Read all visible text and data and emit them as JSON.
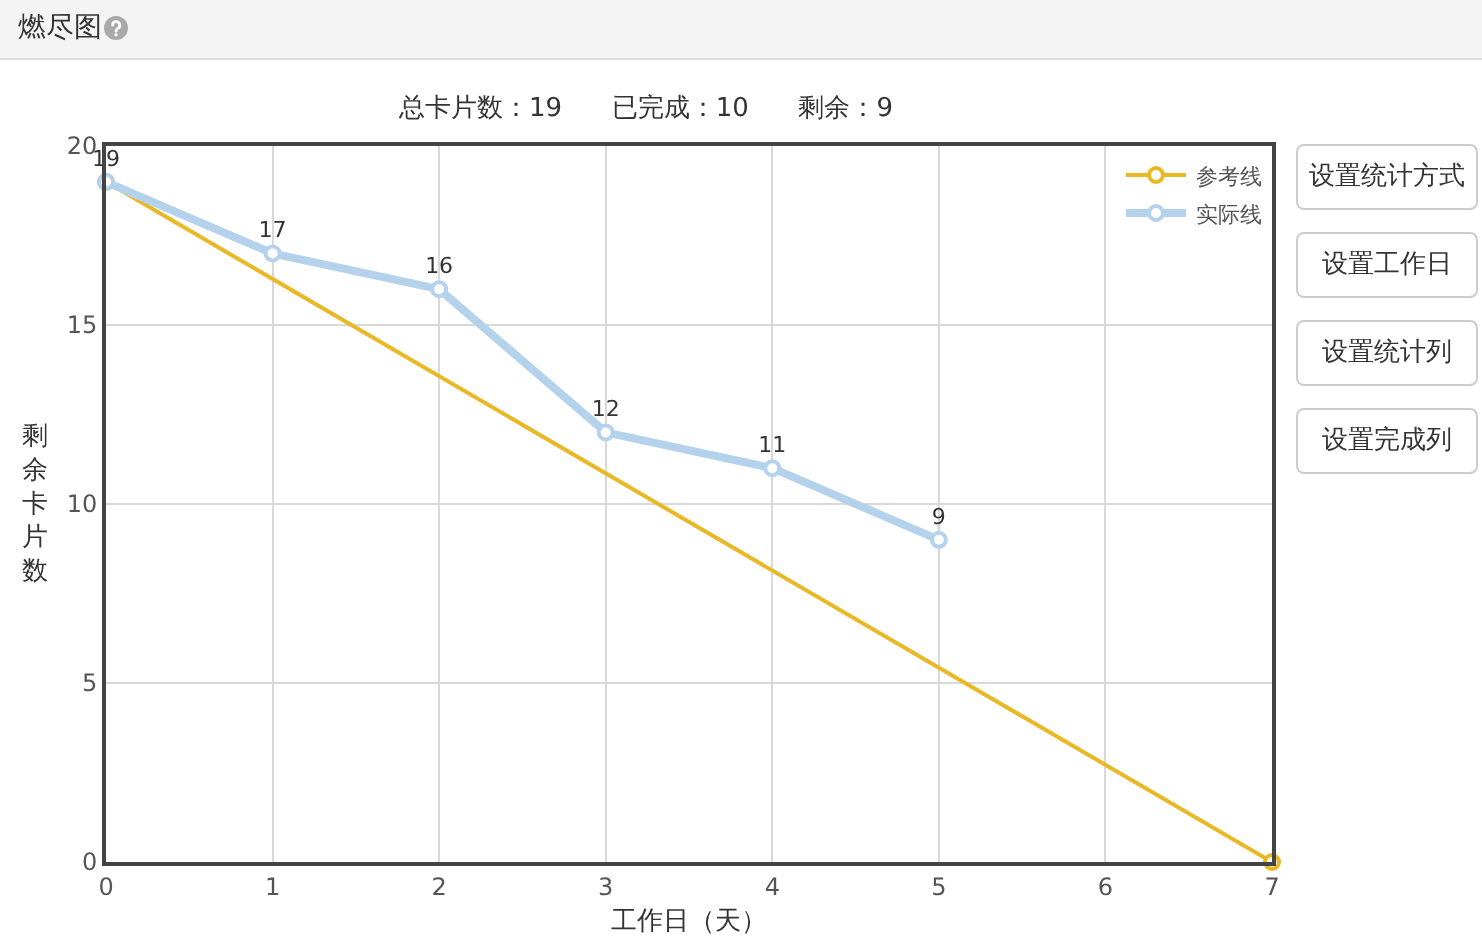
{
  "chart_data": {
    "type": "line",
    "title": "燃尽图",
    "subtitle": "总卡片数：19      已完成：10      剩余：9",
    "xlabel": "工作日（天）",
    "ylabel": "剩余卡片数",
    "series": [
      {
        "name": "参考线",
        "color": "#e9b824",
        "x": [
          0,
          7
        ],
        "values": [
          19,
          0
        ]
      },
      {
        "name": "实际线",
        "color": "#b4d2ec",
        "x": [
          0,
          1,
          2,
          3,
          4,
          5
        ],
        "values": [
          19,
          17,
          16,
          12,
          11,
          9
        ],
        "value_labels": [
          "19",
          "17",
          "16",
          "12",
          "11",
          "9"
        ]
      }
    ],
    "xlim": [
      0,
      7
    ],
    "xticks": [
      0,
      1,
      2,
      3,
      4,
      5,
      6,
      7
    ],
    "ylim": [
      0,
      20
    ],
    "yticks": [
      0,
      5,
      10,
      15,
      20
    ],
    "grid": true,
    "legend": "top right",
    "marker": "circle",
    "annotations": [
      "设置统计方式",
      "设置工作日",
      "设置统计列",
      "设置完成列"
    ]
  }
}
